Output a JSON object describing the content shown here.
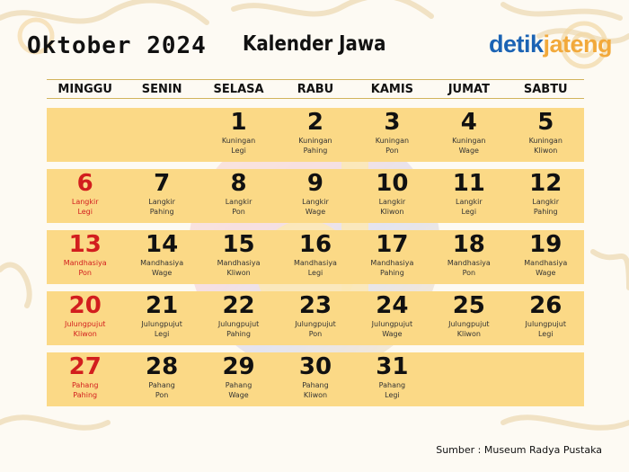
{
  "header": {
    "month_year": "Oktober 2024",
    "title": "Kalender Jawa",
    "brand_part1": "detik",
    "brand_part2": "jateng"
  },
  "weekdays": [
    "MINGGU",
    "SENIN",
    "SELASA",
    "RABU",
    "KAMIS",
    "JUMAT",
    "SABTU"
  ],
  "weeks": [
    [
      {
        "num": "",
        "l1": "",
        "l2": ""
      },
      {
        "num": "",
        "l1": "",
        "l2": ""
      },
      {
        "num": "1",
        "l1": "Kuningan",
        "l2": "Legi"
      },
      {
        "num": "2",
        "l1": "Kuningan",
        "l2": "Pahing"
      },
      {
        "num": "3",
        "l1": "Kuningan",
        "l2": "Pon"
      },
      {
        "num": "4",
        "l1": "Kuningan",
        "l2": "Wage"
      },
      {
        "num": "5",
        "l1": "Kuningan",
        "l2": "Kliwon"
      }
    ],
    [
      {
        "num": "6",
        "l1": "Langkir",
        "l2": "Legi"
      },
      {
        "num": "7",
        "l1": "Langkir",
        "l2": "Pahing"
      },
      {
        "num": "8",
        "l1": "Langkir",
        "l2": "Pon"
      },
      {
        "num": "9",
        "l1": "Langkir",
        "l2": "Wage"
      },
      {
        "num": "10",
        "l1": "Langkir",
        "l2": "Kliwon"
      },
      {
        "num": "11",
        "l1": "Langkir",
        "l2": "Legi"
      },
      {
        "num": "12",
        "l1": "Langkir",
        "l2": "Pahing"
      }
    ],
    [
      {
        "num": "13",
        "l1": "Mandhasiya",
        "l2": "Pon"
      },
      {
        "num": "14",
        "l1": "Mandhasiya",
        "l2": "Wage"
      },
      {
        "num": "15",
        "l1": "Mandhasiya",
        "l2": "Kliwon"
      },
      {
        "num": "16",
        "l1": "Mandhasiya",
        "l2": "Legi"
      },
      {
        "num": "17",
        "l1": "Mandhasiya",
        "l2": "Pahing"
      },
      {
        "num": "18",
        "l1": "Mandhasiya",
        "l2": "Pon"
      },
      {
        "num": "19",
        "l1": "Mandhasiya",
        "l2": "Wage"
      }
    ],
    [
      {
        "num": "20",
        "l1": "Julungpujut",
        "l2": "Kliwon"
      },
      {
        "num": "21",
        "l1": "Julungpujut",
        "l2": "Legi"
      },
      {
        "num": "22",
        "l1": "Julungpujut",
        "l2": "Pahing"
      },
      {
        "num": "23",
        "l1": "Julungpujut",
        "l2": "Pon"
      },
      {
        "num": "24",
        "l1": "Julungpujut",
        "l2": "Wage"
      },
      {
        "num": "25",
        "l1": "Julungpujut",
        "l2": "Kliwon"
      },
      {
        "num": "26",
        "l1": "Julungpujut",
        "l2": "Legi"
      }
    ],
    [
      {
        "num": "27",
        "l1": "Pahang",
        "l2": "Pahing"
      },
      {
        "num": "28",
        "l1": "Pahang",
        "l2": "Pon"
      },
      {
        "num": "29",
        "l1": "Pahang",
        "l2": "Wage"
      },
      {
        "num": "30",
        "l1": "Pahang",
        "l2": "Kliwon"
      },
      {
        "num": "31",
        "l1": "Pahang",
        "l2": "Legi"
      },
      {
        "num": "",
        "l1": "",
        "l2": ""
      },
      {
        "num": "",
        "l1": "",
        "l2": ""
      }
    ]
  ],
  "source": "Sumber : Museum Radya Pustaka",
  "colors": {
    "cell_bg": "#fbd986",
    "sunday_red": "#d21e1e",
    "brand_blue": "#1b63b4",
    "brand_orange": "#f2a93b"
  }
}
